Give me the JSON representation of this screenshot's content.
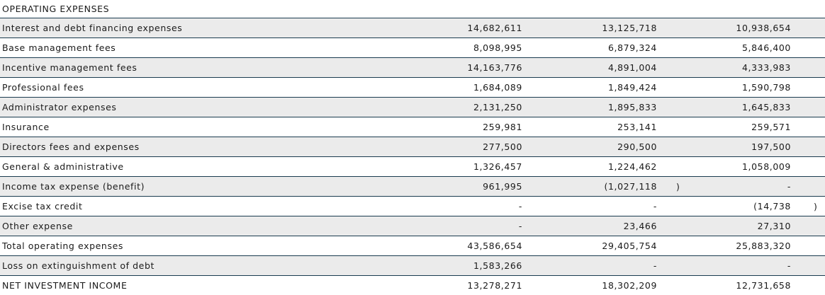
{
  "title": "OPERATING EXPENSES",
  "rows": [
    {
      "label": "Interest and debt financing expenses",
      "v1": "14,682,611",
      "v2": "13,125,718",
      "v3": "10,938,654",
      "p2": "",
      "p3": "",
      "shade": true
    },
    {
      "label": "Base management fees",
      "v1": "8,098,995",
      "v2": "6,879,324",
      "v3": "5,846,400",
      "p2": "",
      "p3": "",
      "shade": false
    },
    {
      "label": "Incentive management fees",
      "v1": "14,163,776",
      "v2": "4,891,004",
      "v3": "4,333,983",
      "p2": "",
      "p3": "",
      "shade": true
    },
    {
      "label": "Professional fees",
      "v1": "1,684,089",
      "v2": "1,849,424",
      "v3": "1,590,798",
      "p2": "",
      "p3": "",
      "shade": false
    },
    {
      "label": "Administrator expenses",
      "v1": "2,131,250",
      "v2": "1,895,833",
      "v3": "1,645,833",
      "p2": "",
      "p3": "",
      "shade": true
    },
    {
      "label": "Insurance",
      "v1": "259,981",
      "v2": "253,141",
      "v3": "259,571",
      "p2": "",
      "p3": "",
      "shade": false
    },
    {
      "label": "Directors fees and expenses",
      "v1": "277,500",
      "v2": "290,500",
      "v3": "197,500",
      "p2": "",
      "p3": "",
      "shade": true
    },
    {
      "label": "General & administrative",
      "v1": "1,326,457",
      "v2": "1,224,462",
      "v3": "1,058,009",
      "p2": "",
      "p3": "",
      "shade": false
    },
    {
      "label": "Income tax expense (benefit)",
      "v1": "961,995",
      "v2": "(1,027,118",
      "v3": "-",
      "p2": ")",
      "p3": "",
      "shade": true
    },
    {
      "label": "Excise tax credit",
      "v1": "-",
      "v2": "-",
      "v3": "(14,738",
      "p2": "",
      "p3": ")",
      "shade": false
    },
    {
      "label": "Other expense",
      "v1": "-",
      "v2": "23,466",
      "v3": "27,310",
      "p2": "",
      "p3": "",
      "shade": true
    },
    {
      "label": "Total operating expenses",
      "v1": "43,586,654",
      "v2": "29,405,754",
      "v3": "25,883,320",
      "p2": "",
      "p3": "",
      "shade": false
    },
    {
      "label": "Loss on extinguishment of debt",
      "v1": "1,583,266",
      "v2": "-",
      "v3": "-",
      "p2": "",
      "p3": "",
      "shade": true
    },
    {
      "label": "NET INVESTMENT INCOME",
      "v1": "13,278,271",
      "v2": "18,302,209",
      "v3": "12,731,658",
      "p2": "",
      "p3": "",
      "shade": false
    }
  ]
}
